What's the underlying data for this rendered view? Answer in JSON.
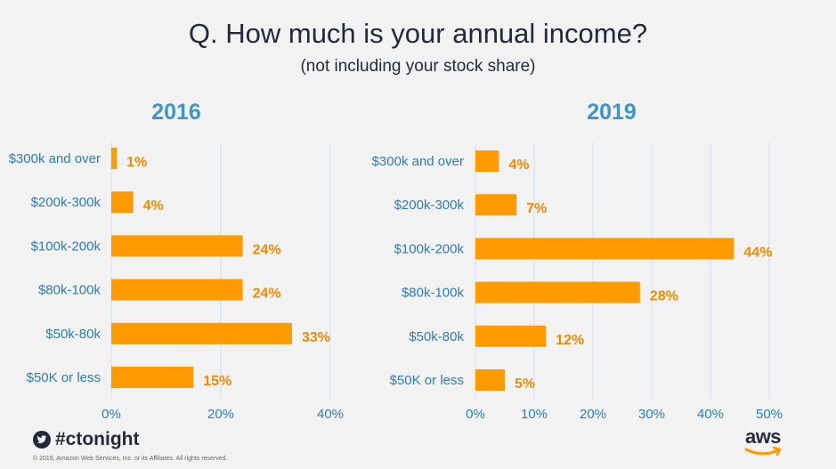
{
  "title": "Q. How much is your annual income?",
  "subtitle": "(not including  your stock share)",
  "footer": {
    "hashtag": "#ctonight",
    "copyright": "© 2019, Amazon Web Services,  Inc. or its Affiliates.  All rights reserved.",
    "logo_text": "aws"
  },
  "colors": {
    "bar": "#ff9a00",
    "value_label": "#f28a00",
    "category_label": "#2e7cb6",
    "chart_title": "#3d95c8",
    "grid": "#cfe0ee"
  },
  "chart_data": [
    {
      "type": "bar",
      "orientation": "horizontal",
      "title": "2016",
      "categories": [
        "$300k and over",
        "$200k-300k",
        "$100k-200k",
        "$80k-100k",
        "$50k-80k",
        "$50K or less"
      ],
      "values": [
        1,
        4,
        24,
        24,
        33,
        15
      ],
      "value_labels": [
        "1%",
        "4%",
        "24%",
        "24%",
        "33%",
        "15%"
      ],
      "xlim": [
        0,
        40
      ],
      "xticks": [
        0,
        20,
        40
      ],
      "xtick_labels": [
        "0%",
        "20%",
        "40%"
      ]
    },
    {
      "type": "bar",
      "orientation": "horizontal",
      "title": "2019",
      "categories": [
        "$300k and over",
        "$200k-300k",
        "$100k-200k",
        "$80k-100k",
        "$50k-80k",
        "$50K or less"
      ],
      "values": [
        4,
        7,
        44,
        28,
        12,
        5
      ],
      "value_labels": [
        "4%",
        "7%",
        "44%",
        "28%",
        "12%",
        "5%"
      ],
      "xlim": [
        0,
        50
      ],
      "xticks": [
        0,
        10,
        20,
        30,
        40,
        50
      ],
      "xtick_labels": [
        "0%",
        "10%",
        "20%",
        "30%",
        "40%",
        "50%"
      ]
    }
  ]
}
